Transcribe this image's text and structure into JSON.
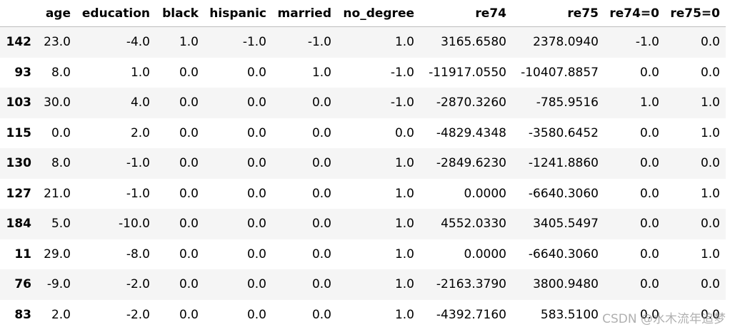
{
  "table": {
    "columns": [
      "age",
      "education",
      "black",
      "hispanic",
      "married",
      "no_degree",
      "re74",
      "re75",
      "re74=0",
      "re75=0"
    ],
    "index": [
      "142",
      "93",
      "103",
      "115",
      "130",
      "127",
      "184",
      "11",
      "76",
      "83"
    ],
    "rows": [
      [
        "23.0",
        "-4.0",
        "1.0",
        "-1.0",
        "-1.0",
        "1.0",
        "3165.6580",
        "2378.0940",
        "-1.0",
        "0.0"
      ],
      [
        "8.0",
        "1.0",
        "0.0",
        "0.0",
        "1.0",
        "-1.0",
        "-11917.0550",
        "-10407.8857",
        "0.0",
        "0.0"
      ],
      [
        "30.0",
        "4.0",
        "0.0",
        "0.0",
        "0.0",
        "-1.0",
        "-2870.3260",
        "-785.9516",
        "1.0",
        "1.0"
      ],
      [
        "0.0",
        "2.0",
        "0.0",
        "0.0",
        "0.0",
        "0.0",
        "-4829.4348",
        "-3580.6452",
        "0.0",
        "1.0"
      ],
      [
        "8.0",
        "-1.0",
        "0.0",
        "0.0",
        "0.0",
        "1.0",
        "-2849.6230",
        "-1241.8860",
        "0.0",
        "0.0"
      ],
      [
        "21.0",
        "-1.0",
        "0.0",
        "0.0",
        "0.0",
        "1.0",
        "0.0000",
        "-6640.3060",
        "0.0",
        "1.0"
      ],
      [
        "5.0",
        "-10.0",
        "0.0",
        "0.0",
        "0.0",
        "1.0",
        "4552.0330",
        "3405.5497",
        "0.0",
        "0.0"
      ],
      [
        "29.0",
        "-8.0",
        "0.0",
        "0.0",
        "0.0",
        "1.0",
        "0.0000",
        "-6640.3060",
        "0.0",
        "1.0"
      ],
      [
        "-9.0",
        "-2.0",
        "0.0",
        "0.0",
        "0.0",
        "1.0",
        "-2163.3790",
        "3800.9480",
        "0.0",
        "0.0"
      ],
      [
        "2.0",
        "-2.0",
        "0.0",
        "0.0",
        "0.0",
        "1.0",
        "-4392.7160",
        "583.5100",
        "0.0",
        "0.0"
      ]
    ]
  },
  "watermark": "CSDN @水木流年追梦"
}
